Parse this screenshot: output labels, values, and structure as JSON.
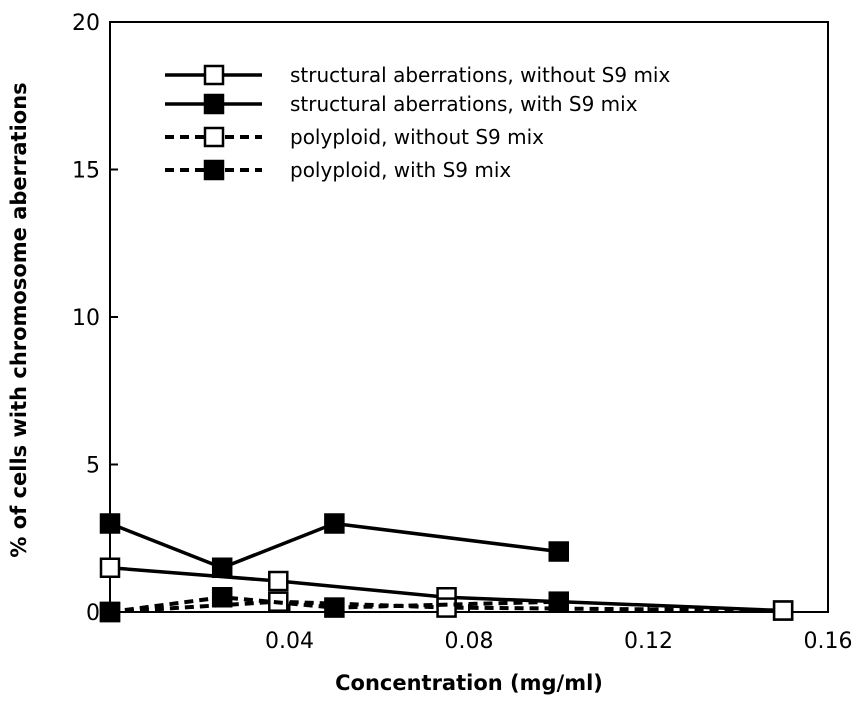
{
  "chart_data": {
    "type": "line",
    "title": "",
    "xlabel": "Concentration (mg/ml)",
    "ylabel": "% of cells with chromosome aberrations",
    "xlim": [
      0,
      0.16
    ],
    "ylim": [
      0,
      20
    ],
    "xticks": [
      0.04,
      0.08,
      0.12,
      0.16
    ],
    "xtick_labels": [
      "0.04",
      "0.08",
      "0.12",
      "0.16"
    ],
    "yticks": [
      0,
      5,
      10,
      15,
      20
    ],
    "ytick_labels": [
      "0",
      "5",
      "10",
      "15",
      "20"
    ],
    "grid": false,
    "legend_position": "top-center",
    "series": [
      {
        "name": "structural aberrations, without S9 mix",
        "line": "solid",
        "marker": "open-square",
        "points": [
          [
            0,
            1.5
          ],
          [
            0.0375,
            1.05
          ],
          [
            0.075,
            0.5
          ],
          [
            0.15,
            0.05
          ]
        ]
      },
      {
        "name": "structural aberrations, with S9 mix",
        "line": "solid",
        "marker": "filled-square",
        "points": [
          [
            0,
            3.0
          ],
          [
            0.025,
            1.5
          ],
          [
            0.05,
            3.0
          ],
          [
            0.1,
            2.05
          ]
        ]
      },
      {
        "name": "polyploid, without S9 mix",
        "line": "dashed",
        "marker": "open-square",
        "points": [
          [
            0,
            0
          ],
          [
            0.0375,
            0.35
          ],
          [
            0.075,
            0.15
          ],
          [
            0.15,
            0.05
          ]
        ]
      },
      {
        "name": "polyploid, with S9 mix",
        "line": "dashed",
        "marker": "filled-square",
        "points": [
          [
            0,
            0
          ],
          [
            0.025,
            0.5
          ],
          [
            0.05,
            0.15
          ],
          [
            0.1,
            0.35
          ]
        ]
      }
    ]
  }
}
